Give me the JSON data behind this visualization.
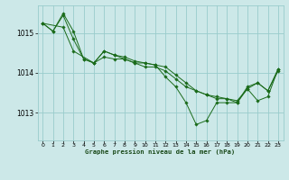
{
  "title": "Graphe pression niveau de la mer (hPa)",
  "background_color": "#cce8e8",
  "grid_color": "#99cccc",
  "line_color": "#1a6b1a",
  "marker_color": "#1a6b1a",
  "xlim": [
    -0.5,
    23.5
  ],
  "ylim": [
    1012.3,
    1015.7
  ],
  "yticks": [
    1013,
    1014,
    1015
  ],
  "xticks": [
    0,
    1,
    2,
    3,
    4,
    5,
    6,
    7,
    8,
    9,
    10,
    11,
    12,
    13,
    14,
    15,
    16,
    17,
    18,
    19,
    20,
    21,
    22,
    23
  ],
  "series": [
    {
      "x": [
        0,
        1,
        2,
        3,
        4,
        5,
        6,
        7,
        8,
        9,
        10,
        11,
        12,
        13,
        14,
        15,
        16,
        17,
        18,
        19,
        20,
        21,
        22,
        23
      ],
      "y": [
        1015.25,
        1015.05,
        1015.45,
        1014.85,
        1014.35,
        1014.25,
        1014.55,
        1014.45,
        1014.35,
        1014.25,
        1014.15,
        1014.15,
        1014.05,
        1013.85,
        1013.65,
        1013.55,
        1013.45,
        1013.35,
        1013.35,
        1013.25,
        1013.65,
        1013.75,
        1013.55,
        1014.05
      ]
    },
    {
      "x": [
        0,
        1,
        2,
        3,
        4,
        5,
        6,
        7,
        8,
        9,
        10,
        11,
        12,
        13,
        14,
        15,
        16,
        17,
        18,
        19,
        20,
        21,
        22,
        23
      ],
      "y": [
        1015.25,
        1015.05,
        1015.5,
        1015.05,
        1014.35,
        1014.25,
        1014.4,
        1014.35,
        1014.35,
        1014.25,
        1014.25,
        1014.2,
        1013.9,
        1013.65,
        1013.25,
        1012.7,
        1012.8,
        1013.25,
        1013.25,
        1013.25,
        1013.6,
        1013.3,
        1013.4,
        1014.1
      ]
    },
    {
      "x": [
        0,
        2,
        3,
        5,
        6,
        7,
        8,
        9,
        10,
        11,
        12,
        13,
        14,
        15,
        16,
        17,
        18,
        19,
        20,
        21,
        22,
        23
      ],
      "y": [
        1015.25,
        1015.15,
        1014.55,
        1014.25,
        1014.55,
        1014.45,
        1014.4,
        1014.3,
        1014.25,
        1014.2,
        1014.15,
        1013.95,
        1013.75,
        1013.55,
        1013.45,
        1013.4,
        1013.35,
        1013.3,
        1013.6,
        1013.75,
        1013.55,
        1014.1
      ]
    }
  ]
}
